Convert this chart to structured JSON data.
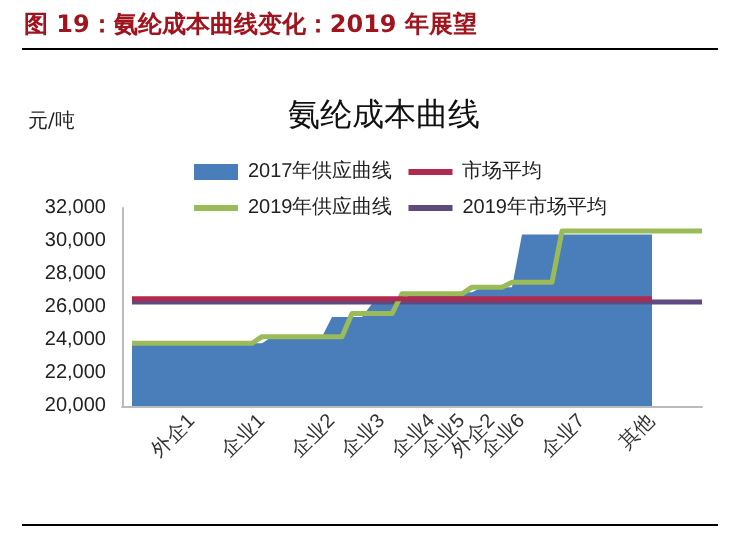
{
  "chart_data": {
    "type": "area",
    "title": "图 19：氨纶成本曲线变化：2019 年展望",
    "subtitle": "氨纶成本曲线",
    "ylabel": "元/吨",
    "categories": [
      null,
      null,
      null,
      null,
      null,
      null,
      null,
      "外企1",
      null,
      null,
      null,
      null,
      null,
      null,
      "企业1",
      null,
      null,
      null,
      null,
      null,
      null,
      "企业2",
      null,
      null,
      null,
      null,
      "企业3",
      null,
      null,
      null,
      null,
      "企业4",
      null,
      null,
      "企业5",
      null,
      null,
      "外企2",
      null,
      null,
      "企业6",
      null,
      null,
      null,
      null,
      null,
      "企业7",
      null,
      null,
      null,
      null,
      null,
      null,
      "其他",
      null,
      null,
      null,
      null,
      null
    ],
    "series": [
      {
        "name": "2017年供应曲线",
        "color": "#4a7ebb",
        "values": [
          null,
          23800,
          23800,
          23800,
          23800,
          23800,
          23800,
          23800,
          23800,
          23800,
          23800,
          23800,
          23800,
          23800,
          23800,
          24200,
          24200,
          24200,
          24200,
          24200,
          24200,
          25400,
          25400,
          25400,
          25400,
          26200,
          26200,
          26200,
          26200,
          26900,
          26900,
          26900,
          26900,
          26900,
          26900,
          26900,
          27200,
          27200,
          27200,
          27200,
          30400,
          30400,
          30400,
          30400,
          30400,
          30400,
          30400,
          30400,
          30400,
          30400,
          30400,
          30400,
          30400,
          30400,
          null,
          null,
          null,
          null,
          null
        ]
      },
      {
        "name": "市场平均",
        "type": "line",
        "color": "#b0294f",
        "values": [
          null,
          26500,
          26500,
          26500,
          26500,
          26500,
          26500,
          26500,
          26500,
          26500,
          26500,
          26500,
          26500,
          26500,
          26500,
          26500,
          26500,
          26500,
          26500,
          26500,
          26500,
          26500,
          26500,
          26500,
          26500,
          26500,
          26500,
          26500,
          26500,
          26500,
          26500,
          26500,
          26500,
          26500,
          26500,
          26500,
          26500,
          26500,
          26500,
          26500,
          26500,
          26500,
          26500,
          26500,
          26500,
          26500,
          26500,
          26500,
          26500,
          26500,
          26500,
          26500,
          26500,
          26500,
          null,
          null,
          null,
          null,
          null
        ]
      },
      {
        "name": "2019年供应曲线",
        "type": "line",
        "color": "#9bbb59",
        "values": [
          null,
          23800,
          23800,
          23800,
          23800,
          23800,
          23800,
          23800,
          23800,
          23800,
          23800,
          23800,
          23800,
          23800,
          24200,
          24200,
          24200,
          24200,
          24200,
          24200,
          24200,
          24200,
          24200,
          25600,
          25600,
          25600,
          25600,
          25600,
          26800,
          26800,
          26800,
          26800,
          26800,
          26800,
          26800,
          27200,
          27200,
          27200,
          27200,
          27500,
          27500,
          27500,
          27500,
          27500,
          30600,
          30600,
          30600,
          30600,
          30600,
          30600,
          30600,
          30600,
          30600,
          30600,
          30600,
          30600,
          30600,
          30600,
          30600
        ]
      },
      {
        "name": "2019年市场平均",
        "type": "line",
        "color": "#5e4a7e",
        "values": [
          null,
          26300,
          26300,
          26300,
          26300,
          26300,
          26300,
          26300,
          26300,
          26300,
          26300,
          26300,
          26300,
          26300,
          26300,
          26300,
          26300,
          26300,
          26300,
          26300,
          26300,
          26300,
          26300,
          26300,
          26300,
          26300,
          26300,
          26300,
          26300,
          26300,
          26300,
          26300,
          26300,
          26300,
          26300,
          26300,
          26300,
          26300,
          26300,
          26300,
          26300,
          26300,
          26300,
          26300,
          26300,
          26300,
          26300,
          26300,
          26300,
          26300,
          26300,
          26300,
          26300,
          26300,
          26300,
          26300,
          26300,
          26300,
          26300
        ]
      }
    ],
    "ylim": [
      20000,
      32000
    ],
    "yticks": [
      {
        "value": 20000,
        "label": "20,000"
      },
      {
        "value": 22000,
        "label": "22,000"
      },
      {
        "value": 24000,
        "label": "24,000"
      },
      {
        "value": 26000,
        "label": "26,000"
      },
      {
        "value": 28000,
        "label": "28,000"
      },
      {
        "value": 30000,
        "label": "30,000"
      },
      {
        "value": 32000,
        "label": "32,000"
      }
    ],
    "grid": false,
    "legend": "top",
    "marker": "none"
  }
}
